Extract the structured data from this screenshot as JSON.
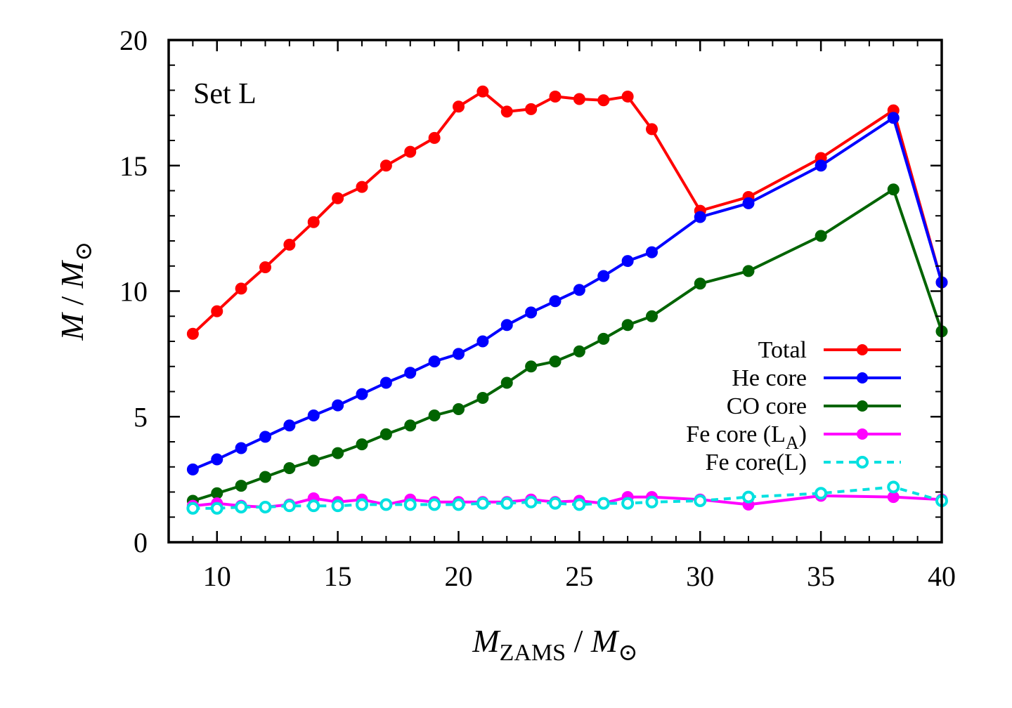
{
  "chart_data": {
    "type": "line",
    "annotation": "Set L",
    "xlabel": {
      "main": "M",
      "sub": "ZAMS",
      "sep": " / ",
      "unit": "M",
      "sun": "⊙"
    },
    "ylabel": {
      "main": "M",
      "sep": " / ",
      "unit": "M",
      "sun": "⊙"
    },
    "xlim": [
      8,
      40
    ],
    "ylim": [
      0,
      20
    ],
    "xticks": [
      10,
      15,
      20,
      25,
      30,
      35,
      40
    ],
    "yticks": [
      0,
      5,
      10,
      15,
      20
    ],
    "xtick_labels": [
      "10",
      "15",
      "20",
      "25",
      "30",
      "35",
      "40"
    ],
    "ytick_labels": [
      "0",
      "5",
      "10",
      "15",
      "20"
    ],
    "legend_position": "right-middle",
    "x": [
      9,
      10,
      11,
      12,
      13,
      14,
      15,
      16,
      17,
      18,
      19,
      20,
      21,
      22,
      23,
      24,
      25,
      26,
      27,
      28,
      30,
      32,
      35,
      38,
      40
    ],
    "series": [
      {
        "name": "Total",
        "color": "#ff0000",
        "style": "solid",
        "marker": "filled",
        "values": [
          8.3,
          9.2,
          10.1,
          10.95,
          11.85,
          12.75,
          13.7,
          14.15,
          15.0,
          15.55,
          16.1,
          17.35,
          17.95,
          17.15,
          17.25,
          17.75,
          17.65,
          17.6,
          17.75,
          16.45,
          13.2,
          13.75,
          15.3,
          17.2,
          10.35
        ]
      },
      {
        "name": "He core",
        "color": "#0000ff",
        "style": "solid",
        "marker": "filled",
        "values": [
          2.9,
          3.3,
          3.75,
          4.2,
          4.65,
          5.05,
          5.45,
          5.9,
          6.35,
          6.75,
          7.2,
          7.5,
          8.0,
          8.65,
          9.15,
          9.6,
          10.05,
          10.6,
          11.2,
          11.55,
          12.95,
          13.5,
          15.0,
          16.9,
          10.35
        ]
      },
      {
        "name": "CO core",
        "color": "#006400",
        "style": "solid",
        "marker": "filled",
        "values": [
          1.65,
          1.95,
          2.25,
          2.6,
          2.95,
          3.25,
          3.55,
          3.9,
          4.3,
          4.65,
          5.05,
          5.3,
          5.75,
          6.35,
          7.0,
          7.2,
          7.6,
          8.1,
          8.65,
          9.0,
          10.3,
          10.8,
          12.2,
          14.05,
          8.4
        ]
      },
      {
        "name": "Fe core (L",
        "name_sub": "A",
        "name_suffix": ")",
        "color": "#ff00ff",
        "style": "solid",
        "marker": "filled",
        "values": [
          1.45,
          1.55,
          1.45,
          1.4,
          1.5,
          1.75,
          1.6,
          1.7,
          1.5,
          1.7,
          1.6,
          1.6,
          1.6,
          1.6,
          1.7,
          1.6,
          1.65,
          1.55,
          1.8,
          1.8,
          1.7,
          1.5,
          1.85,
          1.8,
          1.7
        ]
      },
      {
        "name": "Fe core(L)",
        "color": "#00e0e0",
        "style": "dashed",
        "marker": "open",
        "values": [
          1.35,
          1.35,
          1.4,
          1.4,
          1.45,
          1.45,
          1.45,
          1.5,
          1.5,
          1.5,
          1.5,
          1.5,
          1.55,
          1.55,
          1.6,
          1.55,
          1.5,
          1.55,
          1.55,
          1.6,
          1.65,
          1.8,
          1.95,
          2.2,
          1.65
        ]
      }
    ]
  }
}
